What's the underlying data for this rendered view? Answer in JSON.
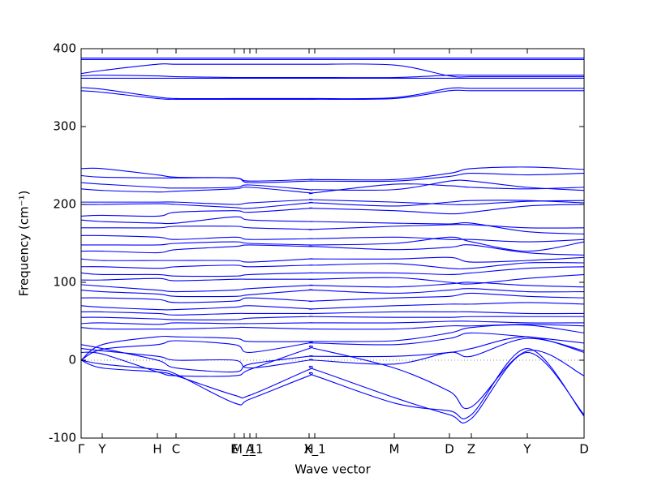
{
  "chart_data": {
    "type": "line",
    "xlabel": "Wave vector",
    "ylabel": "Frequency (cm⁻¹)",
    "color": "#0000ff",
    "zero_line": true,
    "x": [
      0,
      26,
      94,
      117,
      189,
      208,
      281,
      288,
      386,
      454,
      481,
      550,
      620
    ],
    "xlim": [
      0,
      620
    ],
    "xticks": [
      {
        "value": 0,
        "label": "Γ"
      },
      {
        "value": 26,
        "label": "Y"
      },
      {
        "value": 94,
        "label": "H"
      },
      {
        "value": 117,
        "label": "C"
      },
      {
        "value": 189,
        "label": "E"
      },
      {
        "value": 201,
        "label": "M_1"
      },
      {
        "value": 208,
        "label": "A"
      },
      {
        "value": 216,
        "label": "_1"
      },
      {
        "value": 281,
        "label": "H"
      },
      {
        "value": 288,
        "label": "X_1"
      },
      {
        "value": 386,
        "label": "M"
      },
      {
        "value": 454,
        "label": "D"
      },
      {
        "value": 481,
        "label": "Z"
      },
      {
        "value": 550,
        "label": "Y"
      },
      {
        "value": 620,
        "label": "D"
      }
    ],
    "ylim": [
      -100,
      400
    ],
    "yticks": [
      -100,
      0,
      100,
      200,
      300,
      400
    ],
    "series": [
      {
        "values": [
          388,
          388,
          388,
          388,
          388,
          388,
          388,
          388,
          388,
          388,
          388,
          388,
          388
        ]
      },
      {
        "values": [
          386,
          386,
          386,
          386,
          386,
          386,
          386,
          386,
          386,
          386,
          386,
          386,
          386
        ]
      },
      {
        "values": [
          368,
          372,
          380,
          380,
          380,
          380,
          380,
          380,
          379,
          365,
          364,
          364,
          364
        ]
      },
      {
        "values": [
          365,
          366,
          365,
          364,
          363,
          363,
          363,
          363,
          363,
          366,
          366,
          366,
          366
        ]
      },
      {
        "values": [
          362,
          362,
          362,
          362,
          362,
          362,
          362,
          362,
          362,
          362,
          362,
          362,
          362
        ]
      },
      {
        "values": [
          350,
          348,
          338,
          336,
          336,
          336,
          336,
          336,
          337,
          349,
          349,
          349,
          349
        ]
      },
      {
        "values": [
          346,
          344,
          336,
          335,
          335,
          335,
          335,
          335,
          336,
          346,
          346,
          346,
          346
        ]
      },
      {
        "values": [
          246,
          246,
          238,
          235,
          234,
          230,
          232,
          232,
          232,
          240,
          246,
          248,
          245
        ]
      },
      {
        "values": [
          237,
          235,
          234,
          234,
          234,
          228,
          230,
          230,
          230,
          236,
          240,
          238,
          240
        ]
      },
      {
        "values": [
          228,
          226,
          222,
          221,
          222,
          225,
          219,
          219,
          219,
          230,
          230,
          222,
          218
        ]
      },
      {
        "values": [
          220,
          218,
          216,
          217,
          220,
          222,
          215,
          215,
          226,
          224,
          222,
          220,
          222
        ]
      },
      {
        "values": [
          203,
          203,
          203,
          203,
          200,
          202,
          206,
          206,
          203,
          200,
          200,
          204,
          205
        ]
      },
      {
        "values": [
          200,
          200,
          201,
          200,
          196,
          195,
          202,
          202,
          198,
          203,
          205,
          205,
          202
        ]
      },
      {
        "values": [
          185,
          186,
          185,
          190,
          192,
          190,
          195,
          195,
          192,
          188,
          190,
          198,
          200
        ]
      },
      {
        "values": [
          180,
          178,
          176,
          176,
          184,
          180,
          178,
          178,
          176,
          175,
          176,
          165,
          162
        ]
      },
      {
        "values": [
          170,
          170,
          170,
          172,
          172,
          170,
          168,
          168,
          172,
          174,
          174,
          170,
          170
        ]
      },
      {
        "values": [
          160,
          160,
          158,
          155,
          158,
          155,
          156,
          156,
          158,
          155,
          155,
          152,
          155
        ]
      },
      {
        "values": [
          148,
          148,
          148,
          150,
          152,
          150,
          148,
          148,
          150,
          158,
          152,
          140,
          152
        ]
      },
      {
        "values": [
          140,
          140,
          138,
          142,
          146,
          148,
          146,
          146,
          142,
          145,
          148,
          138,
          135
        ]
      },
      {
        "values": [
          130,
          128,
          128,
          128,
          128,
          126,
          130,
          130,
          130,
          132,
          126,
          128,
          132
        ]
      },
      {
        "values": [
          120,
          120,
          118,
          120,
          122,
          120,
          122,
          122,
          124,
          118,
          118,
          125,
          125
        ]
      },
      {
        "values": [
          112,
          110,
          110,
          108,
          108,
          110,
          112,
          112,
          112,
          110,
          112,
          118,
          120
        ]
      },
      {
        "values": [
          103,
          103,
          105,
          102,
          104,
          104,
          104,
          104,
          106,
          100,
          98,
          105,
          110
        ]
      },
      {
        "values": [
          97,
          95,
          90,
          88,
          90,
          92,
          96,
          96,
          94,
          98,
          100,
          96,
          94
        ]
      },
      {
        "values": [
          90,
          88,
          85,
          82,
          82,
          84,
          90,
          90,
          86,
          90,
          92,
          88,
          88
        ]
      },
      {
        "values": [
          80,
          80,
          78,
          74,
          76,
          80,
          76,
          76,
          80,
          82,
          86,
          82,
          80
        ]
      },
      {
        "values": [
          70,
          68,
          65,
          65,
          68,
          70,
          66,
          66,
          70,
          72,
          72,
          74,
          72
        ]
      },
      {
        "values": [
          62,
          62,
          60,
          58,
          60,
          60,
          60,
          60,
          62,
          62,
          62,
          60,
          60
        ]
      },
      {
        "values": [
          55,
          55,
          53,
          52,
          52,
          54,
          56,
          56,
          55,
          55,
          56,
          56,
          56
        ]
      },
      {
        "values": [
          47,
          48,
          46,
          48,
          47,
          47,
          48,
          48,
          48,
          50,
          50,
          48,
          48
        ]
      },
      {
        "values": [
          42,
          40,
          40,
          40,
          42,
          42,
          40,
          40,
          40,
          44,
          44,
          46,
          44
        ]
      },
      {
        "values": [
          0,
          20,
          30,
          30,
          28,
          24,
          24,
          24,
          25,
          35,
          42,
          45,
          35
        ]
      },
      {
        "values": [
          0,
          14,
          20,
          25,
          20,
          10,
          22,
          22,
          20,
          28,
          35,
          30,
          22
        ]
      },
      {
        "values": [
          20,
          15,
          0,
          -10,
          -15,
          -5,
          5,
          5,
          5,
          10,
          15,
          30,
          10
        ]
      },
      {
        "values": [
          0,
          -10,
          -15,
          -20,
          -45,
          -45,
          -12,
          -12,
          -48,
          -70,
          -75,
          10,
          -70
        ]
      },
      {
        "values": [
          0,
          -5,
          -12,
          -18,
          -55,
          -50,
          -20,
          -20,
          -55,
          -65,
          -70,
          15,
          -72
        ]
      },
      {
        "values": [
          15,
          12,
          5,
          0,
          0,
          -10,
          0,
          0,
          -5,
          10,
          5,
          28,
          12
        ]
      },
      {
        "values": [
          10,
          8,
          -15,
          -20,
          -20,
          -12,
          15,
          15,
          -10,
          -40,
          -60,
          12,
          -20
        ]
      }
    ]
  }
}
